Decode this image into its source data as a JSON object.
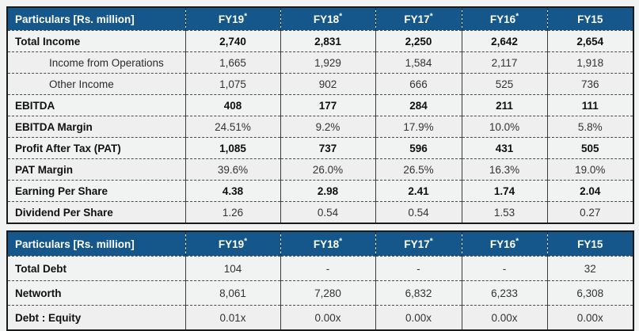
{
  "theme": {
    "header_bg": "#15578b",
    "header_text": "#ffffff",
    "stripe_bg": "#efefef",
    "page_bg": "#f1f2f2",
    "border_color": "#1b1b1b"
  },
  "tables": [
    {
      "name": "profit-and-loss-summary",
      "header": {
        "particulars": "Particulars [Rs. million]",
        "columns": [
          {
            "label": "FY19",
            "mark": "*"
          },
          {
            "label": "FY18",
            "mark": "*"
          },
          {
            "label": "FY17",
            "mark": "*"
          },
          {
            "label": "FY16",
            "mark": "*"
          },
          {
            "label": "FY15",
            "mark": ""
          }
        ]
      },
      "rows": [
        {
          "label": "Total Income",
          "values": [
            "2,740",
            "2,831",
            "2,250",
            "2,642",
            "2,654"
          ]
        },
        {
          "label": "Income from Operations",
          "values": [
            "1,665",
            "1,929",
            "1,584",
            "2,117",
            "1,918"
          ]
        },
        {
          "label": "Other Income",
          "values": [
            "1,075",
            "902",
            "666",
            "525",
            "736"
          ]
        },
        {
          "label": "EBITDA",
          "values": [
            "408",
            "177",
            "284",
            "211",
            "111"
          ]
        },
        {
          "label": "EBITDA Margin",
          "values": [
            "24.51%",
            "9.2%",
            "17.9%",
            "10.0%",
            "5.8%"
          ]
        },
        {
          "label": "Profit After Tax (PAT)",
          "values": [
            "1,085",
            "737",
            "596",
            "431",
            "505"
          ]
        },
        {
          "label": "PAT Margin",
          "values": [
            "39.6%",
            "26.0%",
            "26.5%",
            "16.3%",
            "19.0%"
          ]
        },
        {
          "label": "Earning Per Share",
          "values": [
            "4.38",
            "2.98",
            "2.41",
            "1.74",
            "2.04"
          ]
        },
        {
          "label": "Dividend Per Share",
          "values": [
            "1.26",
            "0.54",
            "0.54",
            "1.53",
            "0.27"
          ]
        }
      ]
    },
    {
      "name": "debt-summary",
      "header": {
        "particulars": "Particulars [Rs. million]",
        "columns": [
          {
            "label": "FY19",
            "mark": "*"
          },
          {
            "label": "FY18",
            "mark": "*"
          },
          {
            "label": "FY17",
            "mark": "*"
          },
          {
            "label": "FY16",
            "mark": "*"
          },
          {
            "label": "FY15",
            "mark": ""
          }
        ]
      },
      "rows": [
        {
          "label": "Total Debt",
          "values": [
            "104",
            "-",
            "-",
            "-",
            "32"
          ]
        },
        {
          "label": "Networth",
          "values": [
            "8,061",
            "7,280",
            "6,832",
            "6,233",
            "6,308"
          ]
        },
        {
          "label": "Debt : Equity",
          "values": [
            "0.01x",
            "0.00x",
            "0.00x",
            "0.00x",
            "0.00x"
          ]
        }
      ]
    }
  ]
}
